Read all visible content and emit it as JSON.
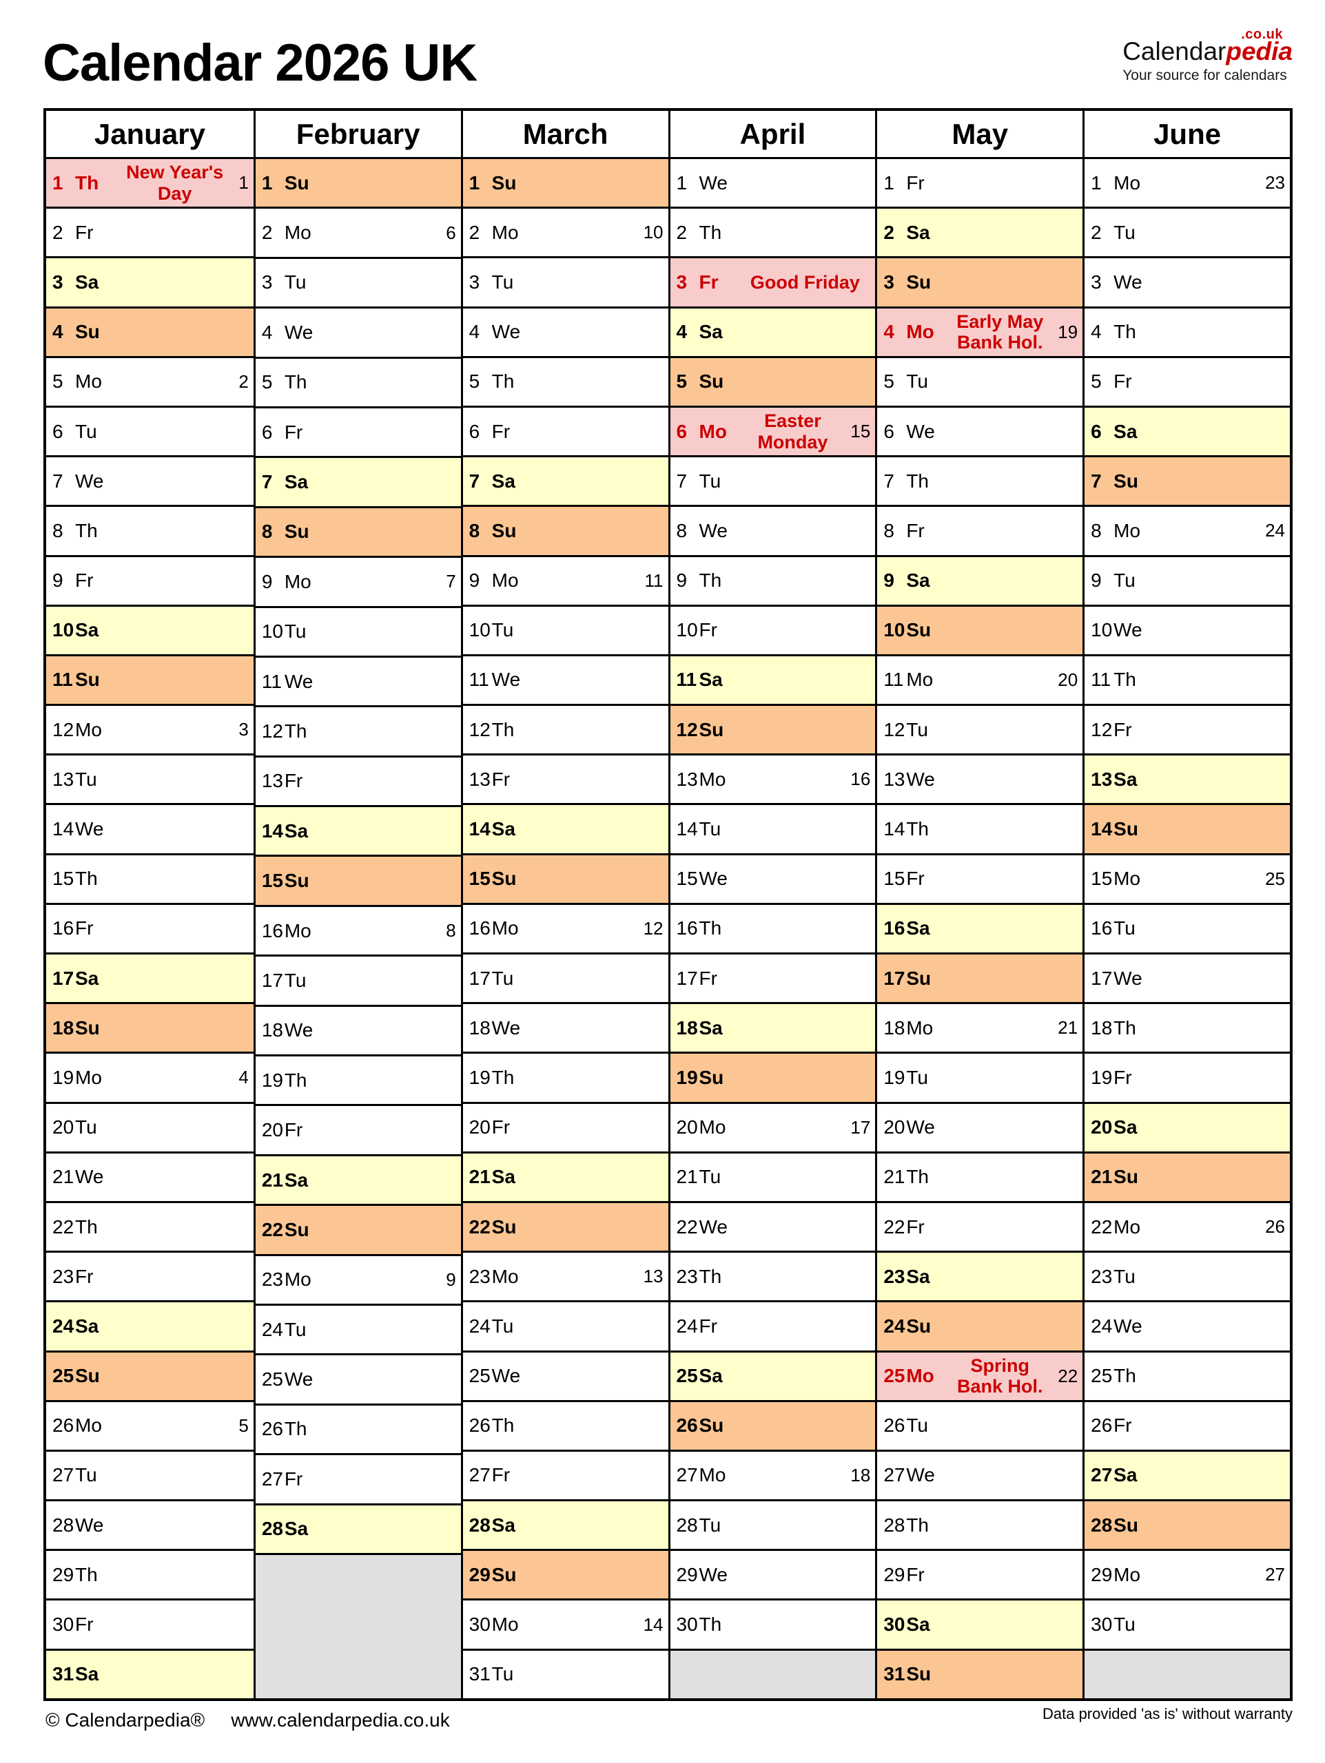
{
  "title": "Calendar 2026 UK",
  "logo": {
    "domain_suffix": ".co.uk",
    "brand_prefix": "Calendar",
    "brand_suffix": "pedia",
    "tagline": "Your source for calendars"
  },
  "footer": {
    "copyright": "© Calendarpedia®",
    "website": "www.calendarpedia.co.uk",
    "disclaimer": "Data provided 'as is' without warranty"
  },
  "colors": {
    "saturday_bg": "#FFFFCC",
    "sunday_bg": "#FBC693",
    "holiday_bg": "#F9CCCC",
    "holiday_text": "#CC0000",
    "empty_bg": "#E0E0E0"
  },
  "months": [
    {
      "name": "January",
      "trailing_empty_rows": 0,
      "days": [
        {
          "d": 1,
          "wd": "Th",
          "week": 1,
          "holiday": "New Year's\nDay"
        },
        {
          "d": 2,
          "wd": "Fr"
        },
        {
          "d": 3,
          "wd": "Sa"
        },
        {
          "d": 4,
          "wd": "Su"
        },
        {
          "d": 5,
          "wd": "Mo",
          "week": 2
        },
        {
          "d": 6,
          "wd": "Tu"
        },
        {
          "d": 7,
          "wd": "We"
        },
        {
          "d": 8,
          "wd": "Th"
        },
        {
          "d": 9,
          "wd": "Fr"
        },
        {
          "d": 10,
          "wd": "Sa"
        },
        {
          "d": 11,
          "wd": "Su"
        },
        {
          "d": 12,
          "wd": "Mo",
          "week": 3
        },
        {
          "d": 13,
          "wd": "Tu"
        },
        {
          "d": 14,
          "wd": "We"
        },
        {
          "d": 15,
          "wd": "Th"
        },
        {
          "d": 16,
          "wd": "Fr"
        },
        {
          "d": 17,
          "wd": "Sa"
        },
        {
          "d": 18,
          "wd": "Su"
        },
        {
          "d": 19,
          "wd": "Mo",
          "week": 4
        },
        {
          "d": 20,
          "wd": "Tu"
        },
        {
          "d": 21,
          "wd": "We"
        },
        {
          "d": 22,
          "wd": "Th"
        },
        {
          "d": 23,
          "wd": "Fr"
        },
        {
          "d": 24,
          "wd": "Sa"
        },
        {
          "d": 25,
          "wd": "Su"
        },
        {
          "d": 26,
          "wd": "Mo",
          "week": 5
        },
        {
          "d": 27,
          "wd": "Tu"
        },
        {
          "d": 28,
          "wd": "We"
        },
        {
          "d": 29,
          "wd": "Th"
        },
        {
          "d": 30,
          "wd": "Fr"
        },
        {
          "d": 31,
          "wd": "Sa"
        }
      ]
    },
    {
      "name": "February",
      "trailing_empty_rows": 3,
      "days": [
        {
          "d": 1,
          "wd": "Su"
        },
        {
          "d": 2,
          "wd": "Mo",
          "week": 6
        },
        {
          "d": 3,
          "wd": "Tu"
        },
        {
          "d": 4,
          "wd": "We"
        },
        {
          "d": 5,
          "wd": "Th"
        },
        {
          "d": 6,
          "wd": "Fr"
        },
        {
          "d": 7,
          "wd": "Sa"
        },
        {
          "d": 8,
          "wd": "Su"
        },
        {
          "d": 9,
          "wd": "Mo",
          "week": 7
        },
        {
          "d": 10,
          "wd": "Tu"
        },
        {
          "d": 11,
          "wd": "We"
        },
        {
          "d": 12,
          "wd": "Th"
        },
        {
          "d": 13,
          "wd": "Fr"
        },
        {
          "d": 14,
          "wd": "Sa"
        },
        {
          "d": 15,
          "wd": "Su"
        },
        {
          "d": 16,
          "wd": "Mo",
          "week": 8
        },
        {
          "d": 17,
          "wd": "Tu"
        },
        {
          "d": 18,
          "wd": "We"
        },
        {
          "d": 19,
          "wd": "Th"
        },
        {
          "d": 20,
          "wd": "Fr"
        },
        {
          "d": 21,
          "wd": "Sa"
        },
        {
          "d": 22,
          "wd": "Su"
        },
        {
          "d": 23,
          "wd": "Mo",
          "week": 9
        },
        {
          "d": 24,
          "wd": "Tu"
        },
        {
          "d": 25,
          "wd": "We"
        },
        {
          "d": 26,
          "wd": "Th"
        },
        {
          "d": 27,
          "wd": "Fr"
        },
        {
          "d": 28,
          "wd": "Sa"
        }
      ]
    },
    {
      "name": "March",
      "trailing_empty_rows": 0,
      "days": [
        {
          "d": 1,
          "wd": "Su"
        },
        {
          "d": 2,
          "wd": "Mo",
          "week": 10
        },
        {
          "d": 3,
          "wd": "Tu"
        },
        {
          "d": 4,
          "wd": "We"
        },
        {
          "d": 5,
          "wd": "Th"
        },
        {
          "d": 6,
          "wd": "Fr"
        },
        {
          "d": 7,
          "wd": "Sa"
        },
        {
          "d": 8,
          "wd": "Su"
        },
        {
          "d": 9,
          "wd": "Mo",
          "week": 11
        },
        {
          "d": 10,
          "wd": "Tu"
        },
        {
          "d": 11,
          "wd": "We"
        },
        {
          "d": 12,
          "wd": "Th"
        },
        {
          "d": 13,
          "wd": "Fr"
        },
        {
          "d": 14,
          "wd": "Sa"
        },
        {
          "d": 15,
          "wd": "Su"
        },
        {
          "d": 16,
          "wd": "Mo",
          "week": 12
        },
        {
          "d": 17,
          "wd": "Tu"
        },
        {
          "d": 18,
          "wd": "We"
        },
        {
          "d": 19,
          "wd": "Th"
        },
        {
          "d": 20,
          "wd": "Fr"
        },
        {
          "d": 21,
          "wd": "Sa"
        },
        {
          "d": 22,
          "wd": "Su"
        },
        {
          "d": 23,
          "wd": "Mo",
          "week": 13
        },
        {
          "d": 24,
          "wd": "Tu"
        },
        {
          "d": 25,
          "wd": "We"
        },
        {
          "d": 26,
          "wd": "Th"
        },
        {
          "d": 27,
          "wd": "Fr"
        },
        {
          "d": 28,
          "wd": "Sa"
        },
        {
          "d": 29,
          "wd": "Su"
        },
        {
          "d": 30,
          "wd": "Mo",
          "week": 14
        },
        {
          "d": 31,
          "wd": "Tu"
        }
      ]
    },
    {
      "name": "April",
      "trailing_empty_rows": 1,
      "days": [
        {
          "d": 1,
          "wd": "We"
        },
        {
          "d": 2,
          "wd": "Th"
        },
        {
          "d": 3,
          "wd": "Fr",
          "holiday": "Good Friday"
        },
        {
          "d": 4,
          "wd": "Sa"
        },
        {
          "d": 5,
          "wd": "Su"
        },
        {
          "d": 6,
          "wd": "Mo",
          "week": 15,
          "holiday": "Easter\nMonday"
        },
        {
          "d": 7,
          "wd": "Tu"
        },
        {
          "d": 8,
          "wd": "We"
        },
        {
          "d": 9,
          "wd": "Th"
        },
        {
          "d": 10,
          "wd": "Fr"
        },
        {
          "d": 11,
          "wd": "Sa"
        },
        {
          "d": 12,
          "wd": "Su"
        },
        {
          "d": 13,
          "wd": "Mo",
          "week": 16
        },
        {
          "d": 14,
          "wd": "Tu"
        },
        {
          "d": 15,
          "wd": "We"
        },
        {
          "d": 16,
          "wd": "Th"
        },
        {
          "d": 17,
          "wd": "Fr"
        },
        {
          "d": 18,
          "wd": "Sa"
        },
        {
          "d": 19,
          "wd": "Su"
        },
        {
          "d": 20,
          "wd": "Mo",
          "week": 17
        },
        {
          "d": 21,
          "wd": "Tu"
        },
        {
          "d": 22,
          "wd": "We"
        },
        {
          "d": 23,
          "wd": "Th"
        },
        {
          "d": 24,
          "wd": "Fr"
        },
        {
          "d": 25,
          "wd": "Sa"
        },
        {
          "d": 26,
          "wd": "Su"
        },
        {
          "d": 27,
          "wd": "Mo",
          "week": 18
        },
        {
          "d": 28,
          "wd": "Tu"
        },
        {
          "d": 29,
          "wd": "We"
        },
        {
          "d": 30,
          "wd": "Th"
        }
      ]
    },
    {
      "name": "May",
      "trailing_empty_rows": 0,
      "days": [
        {
          "d": 1,
          "wd": "Fr"
        },
        {
          "d": 2,
          "wd": "Sa"
        },
        {
          "d": 3,
          "wd": "Su"
        },
        {
          "d": 4,
          "wd": "Mo",
          "week": 19,
          "holiday": "Early May\nBank Hol."
        },
        {
          "d": 5,
          "wd": "Tu"
        },
        {
          "d": 6,
          "wd": "We"
        },
        {
          "d": 7,
          "wd": "Th"
        },
        {
          "d": 8,
          "wd": "Fr"
        },
        {
          "d": 9,
          "wd": "Sa"
        },
        {
          "d": 10,
          "wd": "Su"
        },
        {
          "d": 11,
          "wd": "Mo",
          "week": 20
        },
        {
          "d": 12,
          "wd": "Tu"
        },
        {
          "d": 13,
          "wd": "We"
        },
        {
          "d": 14,
          "wd": "Th"
        },
        {
          "d": 15,
          "wd": "Fr"
        },
        {
          "d": 16,
          "wd": "Sa"
        },
        {
          "d": 17,
          "wd": "Su"
        },
        {
          "d": 18,
          "wd": "Mo",
          "week": 21
        },
        {
          "d": 19,
          "wd": "Tu"
        },
        {
          "d": 20,
          "wd": "We"
        },
        {
          "d": 21,
          "wd": "Th"
        },
        {
          "d": 22,
          "wd": "Fr"
        },
        {
          "d": 23,
          "wd": "Sa"
        },
        {
          "d": 24,
          "wd": "Su"
        },
        {
          "d": 25,
          "wd": "Mo",
          "week": 22,
          "holiday": "Spring\nBank Hol."
        },
        {
          "d": 26,
          "wd": "Tu"
        },
        {
          "d": 27,
          "wd": "We"
        },
        {
          "d": 28,
          "wd": "Th"
        },
        {
          "d": 29,
          "wd": "Fr"
        },
        {
          "d": 30,
          "wd": "Sa"
        },
        {
          "d": 31,
          "wd": "Su"
        }
      ]
    },
    {
      "name": "June",
      "trailing_empty_rows": 1,
      "days": [
        {
          "d": 1,
          "wd": "Mo",
          "week": 23
        },
        {
          "d": 2,
          "wd": "Tu"
        },
        {
          "d": 3,
          "wd": "We"
        },
        {
          "d": 4,
          "wd": "Th"
        },
        {
          "d": 5,
          "wd": "Fr"
        },
        {
          "d": 6,
          "wd": "Sa"
        },
        {
          "d": 7,
          "wd": "Su"
        },
        {
          "d": 8,
          "wd": "Mo",
          "week": 24
        },
        {
          "d": 9,
          "wd": "Tu"
        },
        {
          "d": 10,
          "wd": "We"
        },
        {
          "d": 11,
          "wd": "Th"
        },
        {
          "d": 12,
          "wd": "Fr"
        },
        {
          "d": 13,
          "wd": "Sa"
        },
        {
          "d": 14,
          "wd": "Su"
        },
        {
          "d": 15,
          "wd": "Mo",
          "week": 25
        },
        {
          "d": 16,
          "wd": "Tu"
        },
        {
          "d": 17,
          "wd": "We"
        },
        {
          "d": 18,
          "wd": "Th"
        },
        {
          "d": 19,
          "wd": "Fr"
        },
        {
          "d": 20,
          "wd": "Sa"
        },
        {
          "d": 21,
          "wd": "Su"
        },
        {
          "d": 22,
          "wd": "Mo",
          "week": 26
        },
        {
          "d": 23,
          "wd": "Tu"
        },
        {
          "d": 24,
          "wd": "We"
        },
        {
          "d": 25,
          "wd": "Th"
        },
        {
          "d": 26,
          "wd": "Fr"
        },
        {
          "d": 27,
          "wd": "Sa"
        },
        {
          "d": 28,
          "wd": "Su"
        },
        {
          "d": 29,
          "wd": "Mo",
          "week": 27
        },
        {
          "d": 30,
          "wd": "Tu"
        }
      ]
    }
  ]
}
